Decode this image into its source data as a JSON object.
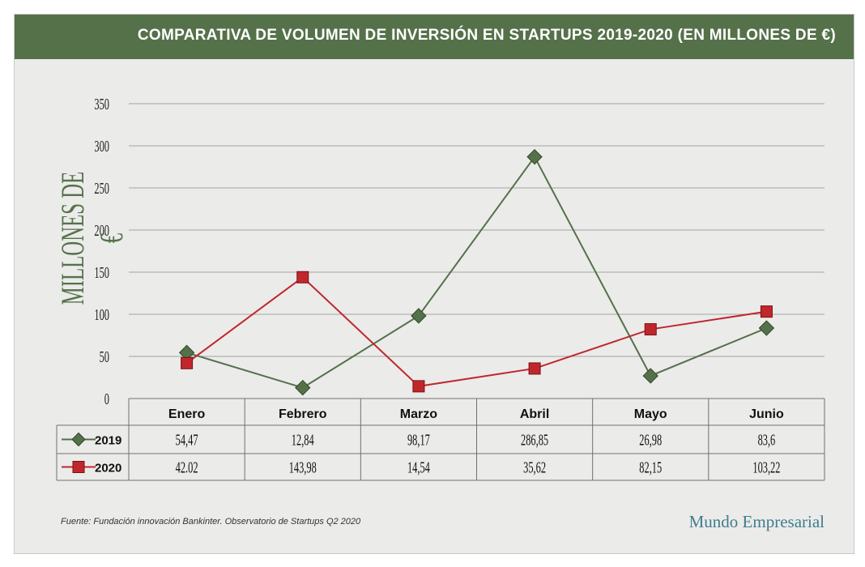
{
  "header": {
    "title": "COMPARATIVA DE VOLUMEN DE INVERSIÓN EN STARTUPS 2019-2020 (EN MILLONES DE €)"
  },
  "footer": {
    "source": "Fuente: Fundación innovación Bankinter. Observatorio de Startups Q2 2020",
    "brand": "Mundo Empresarial"
  },
  "colors": {
    "header": "#55714a",
    "series_2019": "#55714a",
    "series_2020": "#c0272d"
  },
  "chart_data": {
    "type": "line",
    "title": "COMPARATIVA DE VOLUMEN DE INVERSIÓN EN STARTUPS 2019-2020 (EN MILLONES DE €)",
    "ylabel": "MILLONES DE €",
    "xlabel": "",
    "categories": [
      "Enero",
      "Febrero",
      "Marzo",
      "Abril",
      "Mayo",
      "Junio"
    ],
    "ylim": [
      0,
      350
    ],
    "yticks": [
      "0",
      "50",
      "100",
      "150",
      "200",
      "250",
      "300",
      "350"
    ],
    "grid": true,
    "series": [
      {
        "name": "2019",
        "marker": "diamond",
        "color": "#55714a",
        "values": [
          54.47,
          12.84,
          98.17,
          286.85,
          26.98,
          83.6
        ],
        "labels": [
          "54,47",
          "12,84",
          "98,17",
          "286,85",
          "26,98",
          "83,6"
        ]
      },
      {
        "name": "2020",
        "marker": "square",
        "color": "#c0272d",
        "values": [
          42.02,
          143.98,
          14.54,
          35.62,
          82.15,
          103.22
        ],
        "labels": [
          "42.02",
          "143,98",
          "14,54",
          "35,62",
          "82,15",
          "103,22"
        ]
      }
    ]
  }
}
